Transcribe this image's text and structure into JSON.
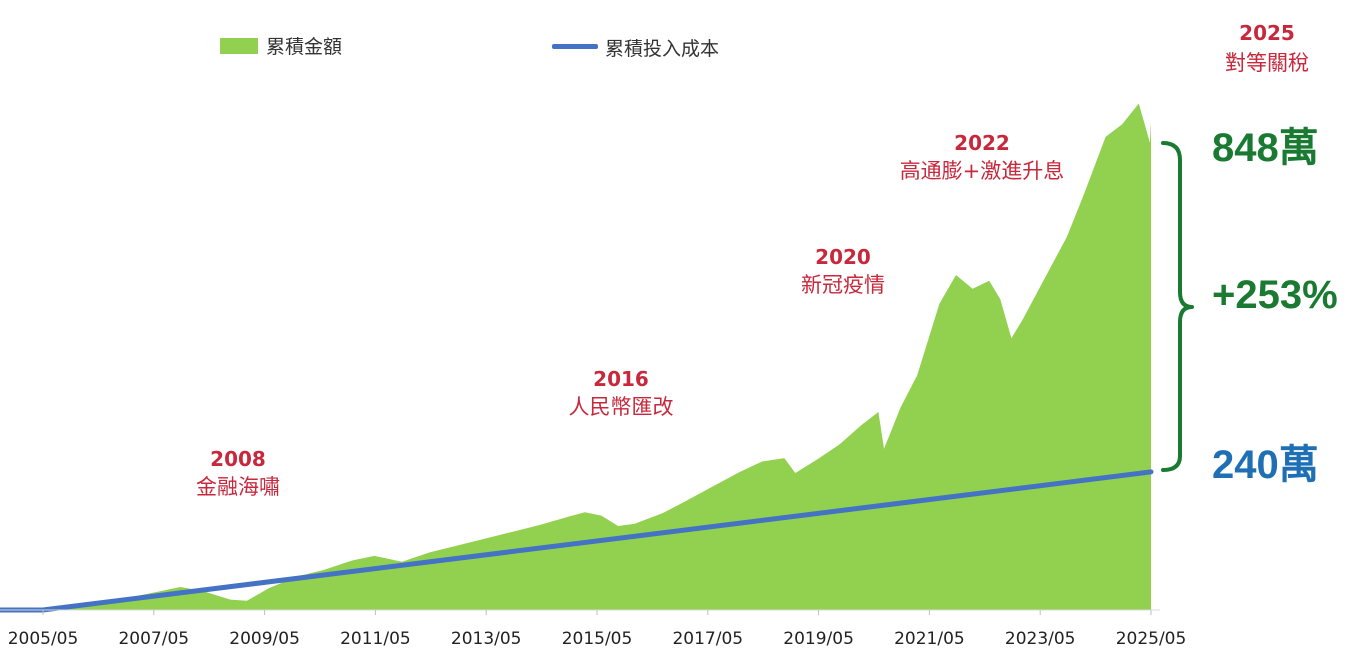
{
  "chart_data": {
    "type": "area",
    "title": "",
    "xlabel": "",
    "ylabel": "",
    "grid": false,
    "legend_placement": "top-left",
    "x_tick_labels": [
      "2005/05",
      "2007/05",
      "2009/05",
      "2011/05",
      "2013/05",
      "2015/05",
      "2017/05",
      "2019/05",
      "2021/05",
      "2023/05",
      "2025/05"
    ],
    "ylim": [
      0,
      900
    ],
    "unit": "萬",
    "series": [
      {
        "name": "累積金額",
        "kind": "area",
        "color": "#92d050",
        "points": [
          [
            2004.42,
            0
          ],
          [
            2005.42,
            0
          ],
          [
            2006.0,
            6
          ],
          [
            2006.5,
            14
          ],
          [
            2007.0,
            22
          ],
          [
            2007.5,
            32
          ],
          [
            2007.9,
            40
          ],
          [
            2008.3,
            33
          ],
          [
            2008.8,
            18
          ],
          [
            2009.1,
            16
          ],
          [
            2009.5,
            38
          ],
          [
            2010.0,
            58
          ],
          [
            2010.5,
            70
          ],
          [
            2011.0,
            86
          ],
          [
            2011.4,
            94
          ],
          [
            2011.9,
            84
          ],
          [
            2012.4,
            100
          ],
          [
            2012.9,
            112
          ],
          [
            2013.4,
            124
          ],
          [
            2013.9,
            136
          ],
          [
            2014.4,
            148
          ],
          [
            2014.9,
            162
          ],
          [
            2015.2,
            170
          ],
          [
            2015.5,
            164
          ],
          [
            2015.8,
            146
          ],
          [
            2016.1,
            150
          ],
          [
            2016.6,
            168
          ],
          [
            2017.0,
            188
          ],
          [
            2017.5,
            214
          ],
          [
            2018.0,
            240
          ],
          [
            2018.4,
            258
          ],
          [
            2018.8,
            264
          ],
          [
            2019.0,
            238
          ],
          [
            2019.4,
            262
          ],
          [
            2019.8,
            288
          ],
          [
            2020.2,
            322
          ],
          [
            2020.5,
            344
          ],
          [
            2020.6,
            280
          ],
          [
            2020.9,
            352
          ],
          [
            2021.2,
            408
          ],
          [
            2021.4,
            470
          ],
          [
            2021.6,
            532
          ],
          [
            2021.9,
            582
          ],
          [
            2022.2,
            558
          ],
          [
            2022.5,
            572
          ],
          [
            2022.7,
            540
          ],
          [
            2022.9,
            472
          ],
          [
            2023.1,
            504
          ],
          [
            2023.5,
            576
          ],
          [
            2023.9,
            648
          ],
          [
            2024.2,
            720
          ],
          [
            2024.6,
            822
          ],
          [
            2024.9,
            844
          ],
          [
            2025.2,
            880
          ],
          [
            2025.4,
            812
          ],
          [
            2025.42,
            848
          ]
        ]
      },
      {
        "name": "累積投入成本",
        "kind": "line",
        "color": "#4472c4",
        "points": [
          [
            2004.42,
            0
          ],
          [
            2005.42,
            0
          ],
          [
            2025.42,
            240
          ]
        ]
      }
    ],
    "annotations": [
      {
        "year": "2008",
        "text": "金融海嘯"
      },
      {
        "year": "2016",
        "text": "人民幣匯改"
      },
      {
        "year": "2020",
        "text": "新冠疫情"
      },
      {
        "year": "2022",
        "text": "高通膨+激進升息"
      },
      {
        "year": "2025",
        "text": "對等關稅"
      }
    ],
    "callouts": {
      "total_value": "848萬",
      "return_pct": "+253%",
      "total_cost": "240萬",
      "value_color": "#1a7a32",
      "cost_color": "#1f6fb5"
    }
  }
}
